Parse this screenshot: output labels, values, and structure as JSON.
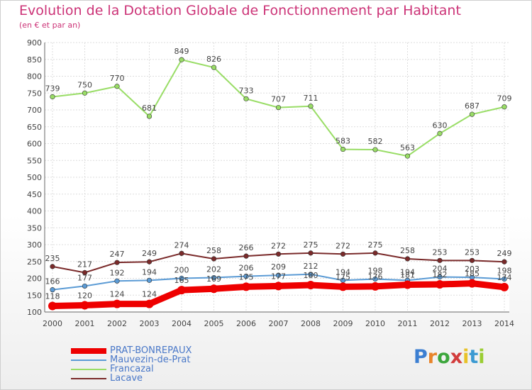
{
  "title": "Evolution de la Dotation Globale de Fonctionnement par Habitant",
  "subtitle": "(en € et par an)",
  "brand": {
    "letters": [
      "P",
      "r",
      "o",
      "x",
      "i",
      "t",
      "i"
    ],
    "colors": [
      "#3c7fd2",
      "#e8842a",
      "#3ca63c",
      "#d23c3c",
      "#e8c22a",
      "#3c9ad2",
      "#9acd32"
    ]
  },
  "chart_data": {
    "type": "line",
    "x": [
      "2000",
      "2001",
      "2002",
      "2003",
      "2004",
      "2005",
      "2006",
      "2007",
      "2008",
      "2009",
      "2010",
      "2011",
      "2012",
      "2013",
      "2014"
    ],
    "ylim": [
      100,
      900
    ],
    "yticks": [
      "100",
      "150",
      "200",
      "250",
      "300",
      "350",
      "400",
      "450",
      "500",
      "550",
      "600",
      "650",
      "700",
      "750",
      "800",
      "850",
      "900"
    ],
    "grid": true,
    "legend_position": "bottom-left",
    "series": [
      {
        "name": "PRAT-BONREPAUX",
        "color": "#ee0000",
        "values": [
          118,
          120,
          124,
          124,
          165,
          169,
          175,
          177,
          180,
          175,
          176,
          181,
          182,
          185,
          174
        ],
        "labels": [
          "118",
          "120",
          "124",
          "124",
          "165",
          "169",
          "175",
          "177",
          "180",
          "175",
          "176",
          "181",
          "182",
          "185",
          "174"
        ]
      },
      {
        "name": "Mauvezin-de-Prat",
        "color": "#5b9bd5",
        "values": [
          166,
          177,
          192,
          194,
          200,
          202,
          206,
          209,
          212,
          194,
          198,
          194,
          204,
          203,
          198
        ],
        "labels": [
          "166",
          "177",
          "192",
          "194",
          "200",
          "202",
          "206",
          "209",
          "212",
          "194",
          "198",
          "194",
          "204",
          "203",
          "198"
        ]
      },
      {
        "name": "Francazal",
        "color": "#99dd66",
        "values": [
          739,
          750,
          770,
          681,
          849,
          826,
          733,
          707,
          711,
          583,
          582,
          563,
          630,
          687,
          709
        ],
        "labels": [
          "739",
          "750",
          "770",
          "681",
          "849",
          "826",
          "733",
          "707",
          "711",
          "583",
          "582",
          "563",
          "630",
          "687",
          "709"
        ]
      },
      {
        "name": "Lacave",
        "color": "#7a2a2a",
        "values": [
          235,
          217,
          247,
          249,
          274,
          258,
          266,
          272,
          275,
          272,
          275,
          258,
          253,
          253,
          249
        ],
        "labels": [
          "235",
          "217",
          "247",
          "249",
          "274",
          "258",
          "266",
          "272",
          "275",
          "272",
          "275",
          "258",
          "253",
          "253",
          "249"
        ]
      }
    ]
  }
}
